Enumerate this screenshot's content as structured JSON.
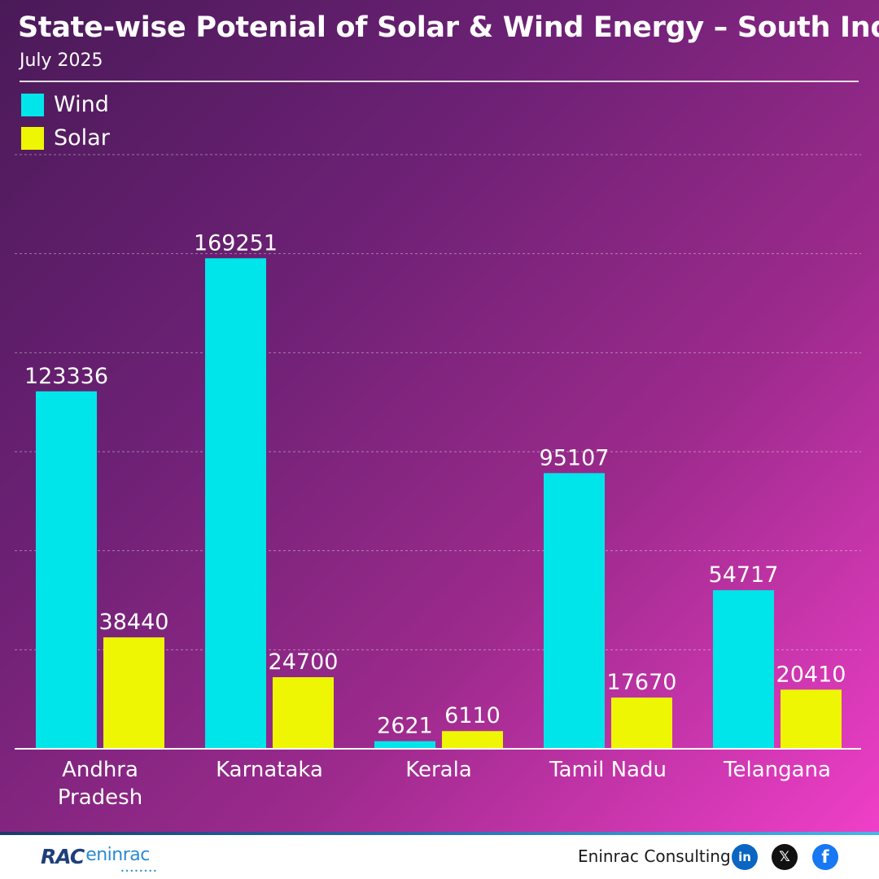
{
  "header": {
    "title": "State-wise Potenial of Solar & Wind Energy – South India",
    "subtitle": "July 2025"
  },
  "colors": {
    "wind": "#00e5ea",
    "solar": "#eef604",
    "text": "#ffffff"
  },
  "legend": [
    {
      "label": "Wind",
      "color": "#00e5ea"
    },
    {
      "label": "Solar",
      "color": "#eef604"
    }
  ],
  "chart_data": {
    "type": "bar",
    "categories": [
      [
        "Andhra",
        "Pradesh"
      ],
      [
        "Karnataka"
      ],
      [
        "Kerala"
      ],
      [
        "Tamil Nadu"
      ],
      [
        "Telangana"
      ]
    ],
    "series": [
      {
        "name": "Wind",
        "values": [
          123336,
          169251,
          2621,
          95107,
          54717
        ]
      },
      {
        "name": "Solar",
        "values": [
          38440,
          24700,
          6110,
          17670,
          20410
        ]
      }
    ],
    "title": "State-wise Potenial of Solar & Wind Energy – South India",
    "subtitle": "July 2025",
    "ylim": [
      0,
      205000
    ],
    "gridlines": true,
    "legend_position": "top-left"
  },
  "footer": {
    "logo_text_a": "RAC",
    "logo_text_b": "eninrac",
    "company": "Eninrac Consulting",
    "social_icons": [
      "linkedin-icon",
      "x-icon",
      "facebook-icon"
    ],
    "social_glyphs": {
      "linkedin": "in",
      "x": "𝕏",
      "facebook": "f"
    }
  }
}
